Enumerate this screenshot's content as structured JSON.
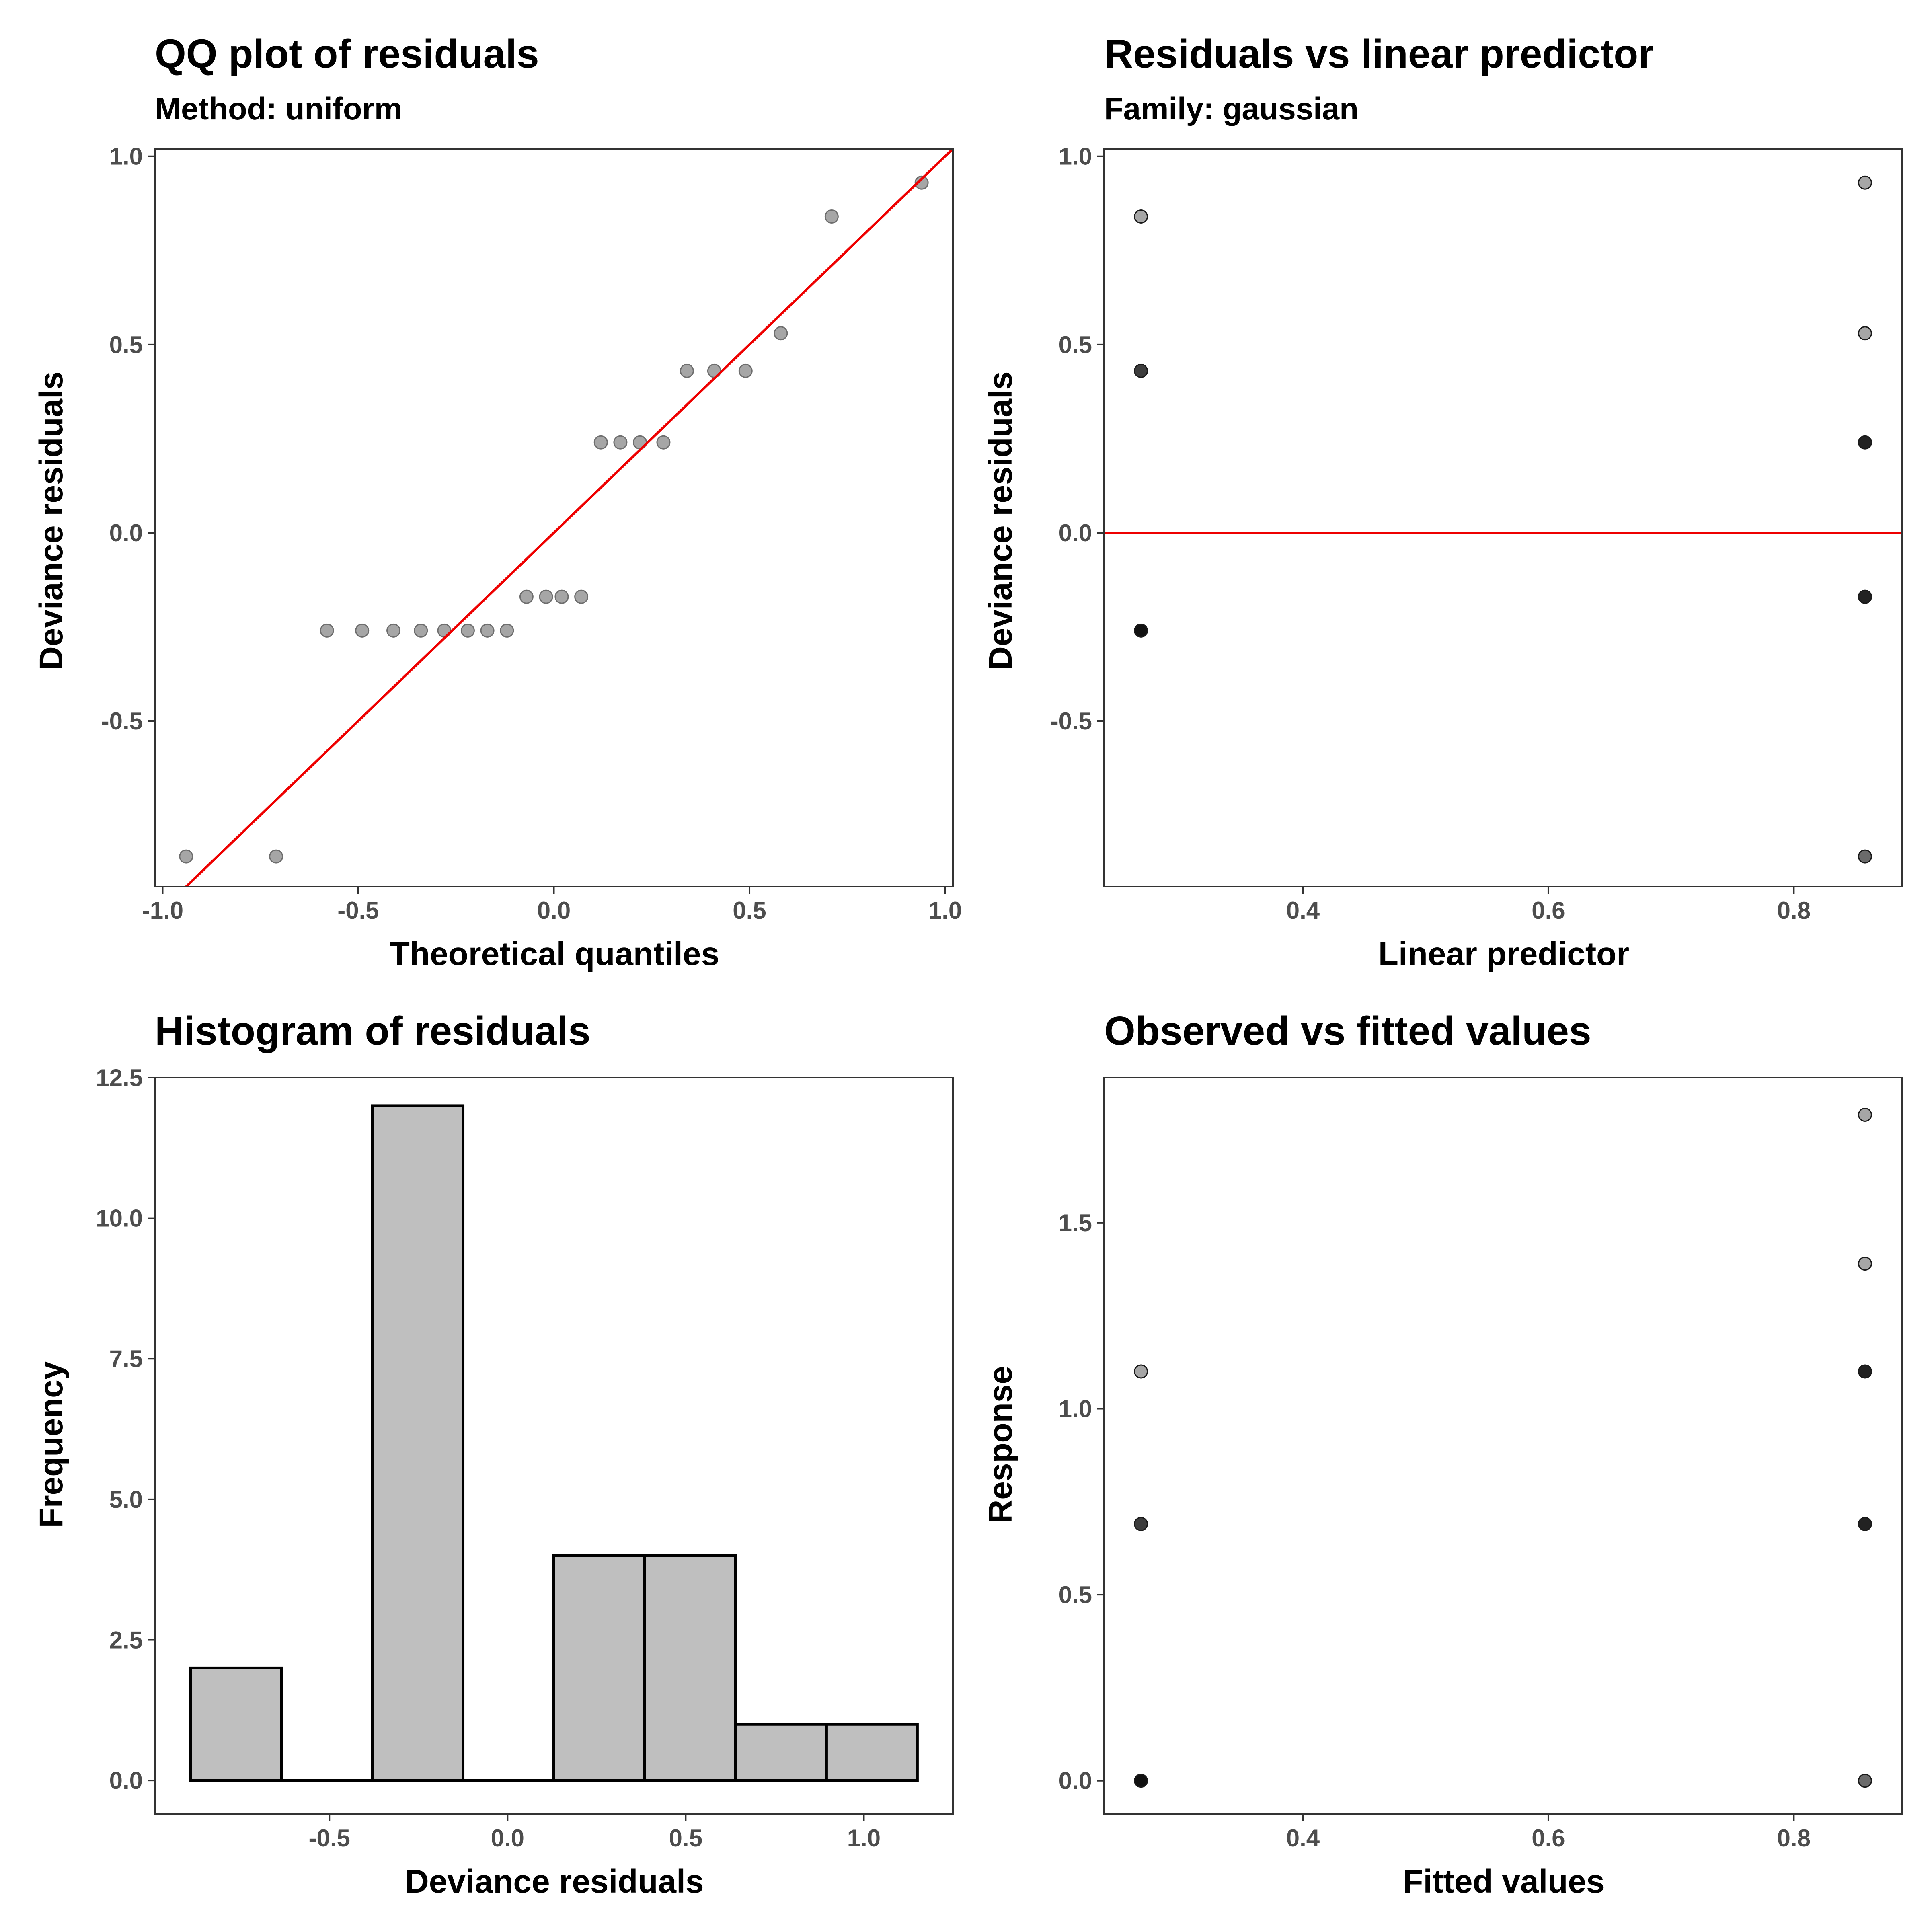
{
  "chart_data": [
    {
      "id": "qq",
      "type": "scatter",
      "title": "QQ plot of residuals",
      "subtitle": "Method: uniform",
      "xlabel": "Theoretical quantiles",
      "ylabel": "Deviance residuals",
      "xlim": [
        -1.02,
        1.02
      ],
      "ylim": [
        -0.94,
        1.02
      ],
      "xticks": [
        -1.0,
        -0.5,
        0.0,
        0.5,
        1.0
      ],
      "xtick_labels": [
        "-1.0",
        "-0.5",
        "0.0",
        "0.5",
        "1.0"
      ],
      "yticks": [
        -0.5,
        0.0,
        0.5,
        1.0
      ],
      "ytick_labels": [
        "-0.5",
        "0.0",
        "0.5",
        "1.0"
      ],
      "x": [
        -0.94,
        -0.71,
        -0.58,
        -0.49,
        -0.41,
        -0.34,
        -0.28,
        -0.22,
        -0.17,
        -0.12,
        -0.07,
        -0.02,
        0.02,
        0.07,
        0.12,
        0.17,
        0.22,
        0.28,
        0.34,
        0.41,
        0.49,
        0.58,
        0.71,
        0.94
      ],
      "y": [
        -0.86,
        -0.86,
        -0.26,
        -0.26,
        -0.26,
        -0.26,
        -0.26,
        -0.26,
        -0.26,
        -0.26,
        -0.17,
        -0.17,
        -0.17,
        -0.17,
        0.24,
        0.24,
        0.24,
        0.24,
        0.43,
        0.43,
        0.43,
        0.53,
        0.84,
        0.93
      ],
      "point_color": "#a6a6a6",
      "point_stroke": "#6e6e6e",
      "reference_line": {
        "kind": "diagonal",
        "x": [
          -1.1,
          1.1
        ],
        "y": [
          -1.1,
          1.1
        ],
        "color": "#ee0000"
      }
    },
    {
      "id": "resid",
      "type": "scatter",
      "title": "Residuals vs linear predictor",
      "subtitle": "Family: gaussian",
      "xlabel": "Linear predictor",
      "ylabel": "Deviance residuals",
      "xlim": [
        0.238,
        0.888
      ],
      "ylim": [
        -0.94,
        1.02
      ],
      "xticks": [
        0.4,
        0.6,
        0.8
      ],
      "xtick_labels": [
        "0.4",
        "0.6",
        "0.8"
      ],
      "yticks": [
        -0.5,
        0.0,
        0.5,
        1.0
      ],
      "ytick_labels": [
        "-0.5",
        "0.0",
        "0.5",
        "1.0"
      ],
      "points": [
        {
          "x": 0.268,
          "y": 0.84,
          "color": "#a6a6a6"
        },
        {
          "x": 0.268,
          "y": 0.43,
          "color": "#3d3d3d"
        },
        {
          "x": 0.268,
          "y": -0.26,
          "color": "#111111"
        },
        {
          "x": 0.858,
          "y": 0.93,
          "color": "#a6a6a6"
        },
        {
          "x": 0.858,
          "y": 0.53,
          "color": "#a6a6a6"
        },
        {
          "x": 0.858,
          "y": 0.24,
          "color": "#222222"
        },
        {
          "x": 0.858,
          "y": -0.17,
          "color": "#222222"
        },
        {
          "x": 0.858,
          "y": -0.86,
          "color": "#6b6b6b"
        }
      ],
      "reference_line": {
        "kind": "horizontal",
        "y": 0.0,
        "color": "#ee0000"
      }
    },
    {
      "id": "hist",
      "type": "bar",
      "title": "Histogram of residuals",
      "xlabel": "Deviance residuals",
      "ylabel": "Frequency",
      "xlim": [
        -0.99,
        1.25
      ],
      "ylim": [
        -0.6,
        12.5
      ],
      "xticks": [
        -0.5,
        0.0,
        0.5,
        1.0
      ],
      "xtick_labels": [
        "-0.5",
        "0.0",
        "0.5",
        "1.0"
      ],
      "yticks": [
        0.0,
        2.5,
        5.0,
        7.5,
        10.0,
        12.5
      ],
      "ytick_labels": [
        "0.0",
        "2.5",
        "5.0",
        "7.5",
        "10.0",
        "12.5"
      ],
      "bin_edges": [
        -0.89,
        -0.635,
        -0.38,
        -0.125,
        0.13,
        0.385,
        0.64,
        0.895,
        1.15
      ],
      "values": [
        2,
        0,
        12,
        0,
        4,
        4,
        1,
        1
      ],
      "bar_fill": "#bfbfbf",
      "bar_stroke": "#000000"
    },
    {
      "id": "obsfit",
      "type": "scatter",
      "title": "Observed vs fitted values",
      "xlabel": "Fitted values",
      "ylabel": "Response",
      "xlim": [
        0.238,
        0.888
      ],
      "ylim": [
        -0.09,
        1.89
      ],
      "xticks": [
        0.4,
        0.6,
        0.8
      ],
      "xtick_labels": [
        "0.4",
        "0.6",
        "0.8"
      ],
      "yticks": [
        0.0,
        0.5,
        1.0,
        1.5
      ],
      "ytick_labels": [
        "0.0",
        "0.5",
        "1.0",
        "1.5"
      ],
      "points": [
        {
          "x": 0.268,
          "y": 1.1,
          "color": "#a6a6a6"
        },
        {
          "x": 0.268,
          "y": 0.69,
          "color": "#3d3d3d"
        },
        {
          "x": 0.268,
          "y": 0.0,
          "color": "#111111"
        },
        {
          "x": 0.858,
          "y": 1.79,
          "color": "#a6a6a6"
        },
        {
          "x": 0.858,
          "y": 1.39,
          "color": "#a6a6a6"
        },
        {
          "x": 0.858,
          "y": 1.1,
          "color": "#222222"
        },
        {
          "x": 0.858,
          "y": 0.69,
          "color": "#222222"
        },
        {
          "x": 0.858,
          "y": 0.0,
          "color": "#6b6b6b"
        }
      ]
    }
  ]
}
